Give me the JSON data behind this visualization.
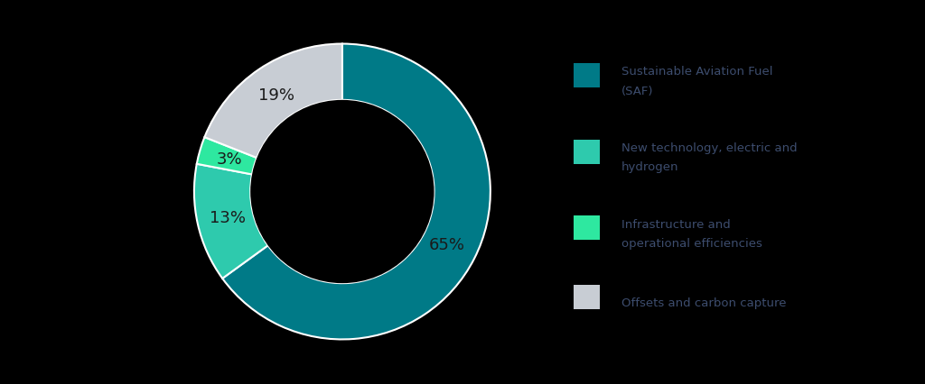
{
  "labels": [
    "Sustainable Aviation Fuel\n(SAF)",
    "New technology, electric and\nhydrogen",
    "Infrastructure and\noperational efficiencies",
    "Offsets and carbon capture"
  ],
  "values": [
    65,
    13,
    3,
    19
  ],
  "colors": [
    "#007a87",
    "#2ecaad",
    "#2ee8a0",
    "#c8cdd4"
  ],
  "pct_labels": [
    "65%",
    "13%",
    "3%",
    "19%"
  ],
  "background_color": "#000000",
  "wedge_edge_color": "#ffffff",
  "legend_text_color": "#3d4d6e",
  "font_size_pct": 13,
  "font_size_legend": 9.5
}
